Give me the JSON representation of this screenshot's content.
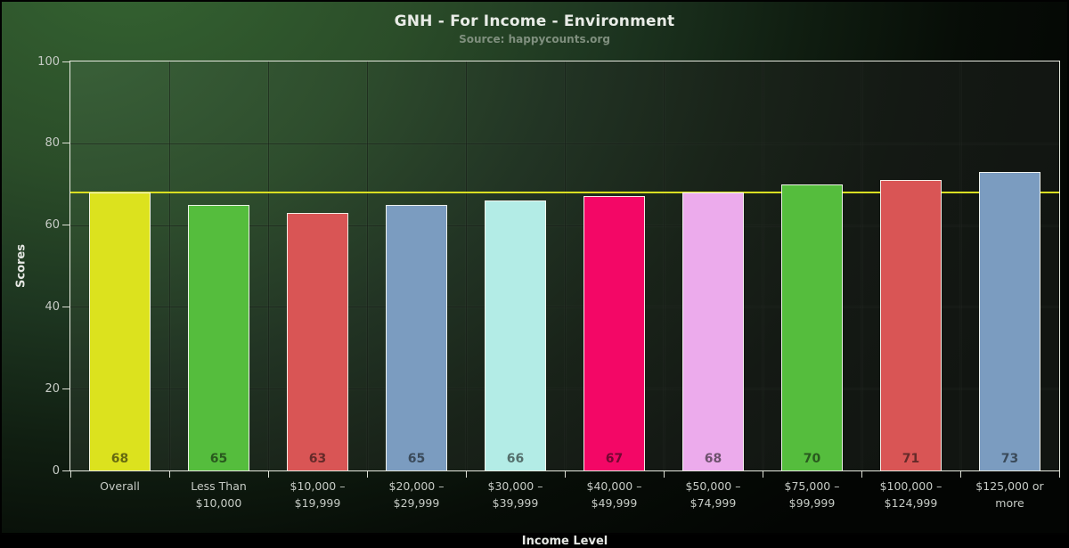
{
  "header": {
    "title": "GNH - For Income - Environment",
    "subtitle": "Source: happycounts.org"
  },
  "colors": {
    "background_top": "#346331",
    "background_bottom": "#030503",
    "axis_frame": "#e7eae0",
    "tick_label": "#c6cbc5",
    "grid": "#161c16",
    "bar_border": "#f4f6ee",
    "value_label": "rgba(5,8,5,0.55)",
    "title": "#e9ece7",
    "subtitle": "#7f8f7e",
    "reference_line": "#d9de22"
  },
  "chart_data": {
    "type": "bar",
    "title": "GNH - For Income - Environment",
    "subtitle": "Source: happycounts.org",
    "xlabel": "Income Level",
    "ylabel": "Scores",
    "ylim": [
      0,
      100
    ],
    "yticks": [
      0,
      20,
      40,
      60,
      80,
      100
    ],
    "grid": true,
    "legend": "none",
    "reference_line": {
      "value": 68,
      "color": "#d9de22"
    },
    "categories": [
      "Overall",
      "Less Than\n$10,000",
      "$10,000 –\n$19,999",
      "$20,000 –\n$29,999",
      "$30,000 –\n$39,999",
      "$40,000 –\n$49,999",
      "$50,000 –\n$74,999",
      "$75,000 –\n$99,999",
      "$100,000 –\n$124,999",
      "$125,000 or\nmore"
    ],
    "values": [
      68,
      65,
      63,
      65,
      66,
      67,
      68,
      70,
      71,
      73
    ],
    "bar_colors": [
      "#dce21e",
      "#55bd3d",
      "#d95555",
      "#7b9cc0",
      "#b3ece6",
      "#f30766",
      "#ecabec",
      "#55bd3d",
      "#d95555",
      "#7b9cc0"
    ]
  }
}
